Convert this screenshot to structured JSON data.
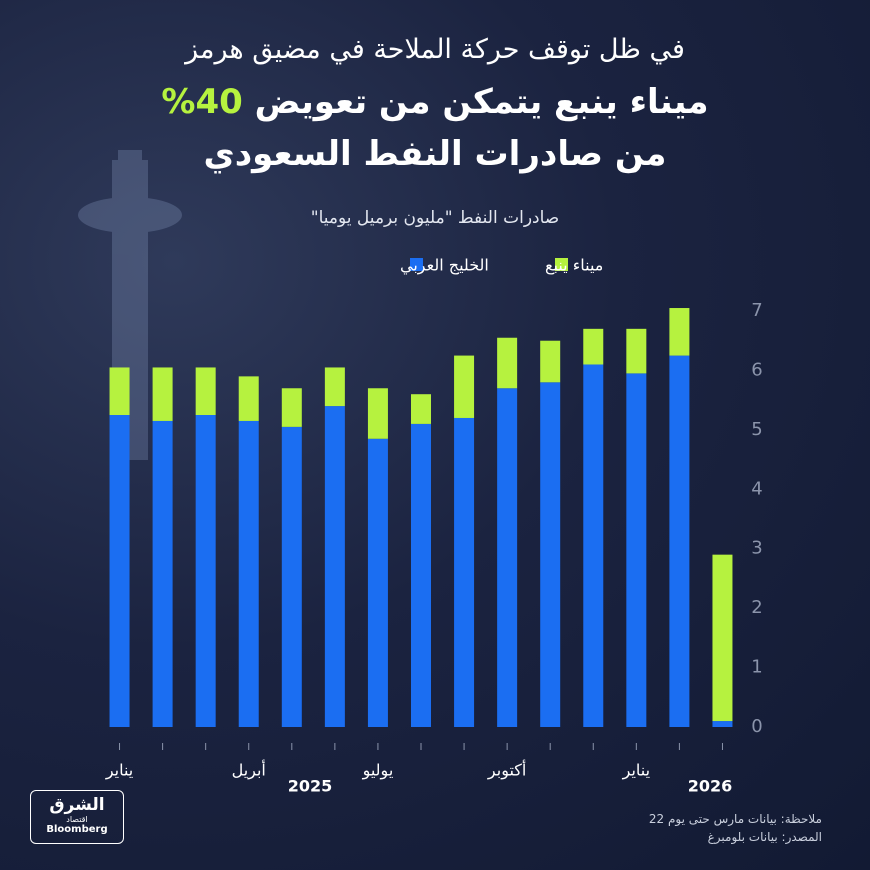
{
  "chart_data": {
    "type": "stacked_bar",
    "kicker": "في ظل توقف حركة الملاحة في مضيق هرمز",
    "title": "ميناء ينبع يتمكن من تعويض",
    "title_highlight": "40%",
    "title_line2": "من صادرات النفط السعودي",
    "subtitle": "صادرات النفط \"مليون برميل يوميا\"",
    "categories": [
      "يناير",
      null,
      null,
      "أبريل",
      null,
      null,
      "يوليو",
      null,
      null,
      "أكتوبر",
      null,
      null,
      "يناير",
      null,
      null
    ],
    "years": [
      "2025",
      "2026"
    ],
    "series": [
      {
        "name": "الخليج العربي",
        "color": "#1b6ef2",
        "values": [
          5.25,
          5.15,
          5.25,
          5.15,
          5.05,
          5.4,
          4.85,
          5.1,
          5.2,
          5.7,
          5.8,
          6.1,
          5.95,
          6.25,
          0.1
        ]
      },
      {
        "name": "ميناء ينبع",
        "color": "#b6f23f",
        "values": [
          0.8,
          0.9,
          0.8,
          0.75,
          0.65,
          0.65,
          0.85,
          0.5,
          1.05,
          0.85,
          0.7,
          0.6,
          0.75,
          0.8,
          2.8
        ]
      }
    ],
    "ylim": [
      0,
      7
    ],
    "yticks": [
      0,
      1,
      2,
      3,
      4,
      5,
      6,
      7
    ],
    "grid": false,
    "note": "ملاحظة: بيانات مارس حتى يوم 22",
    "source": "المصدر: بيانات بلومبرغ",
    "logo": {
      "brand": "الشرق",
      "sub": "اقتصاد",
      "partner": "Bloomberg"
    }
  }
}
